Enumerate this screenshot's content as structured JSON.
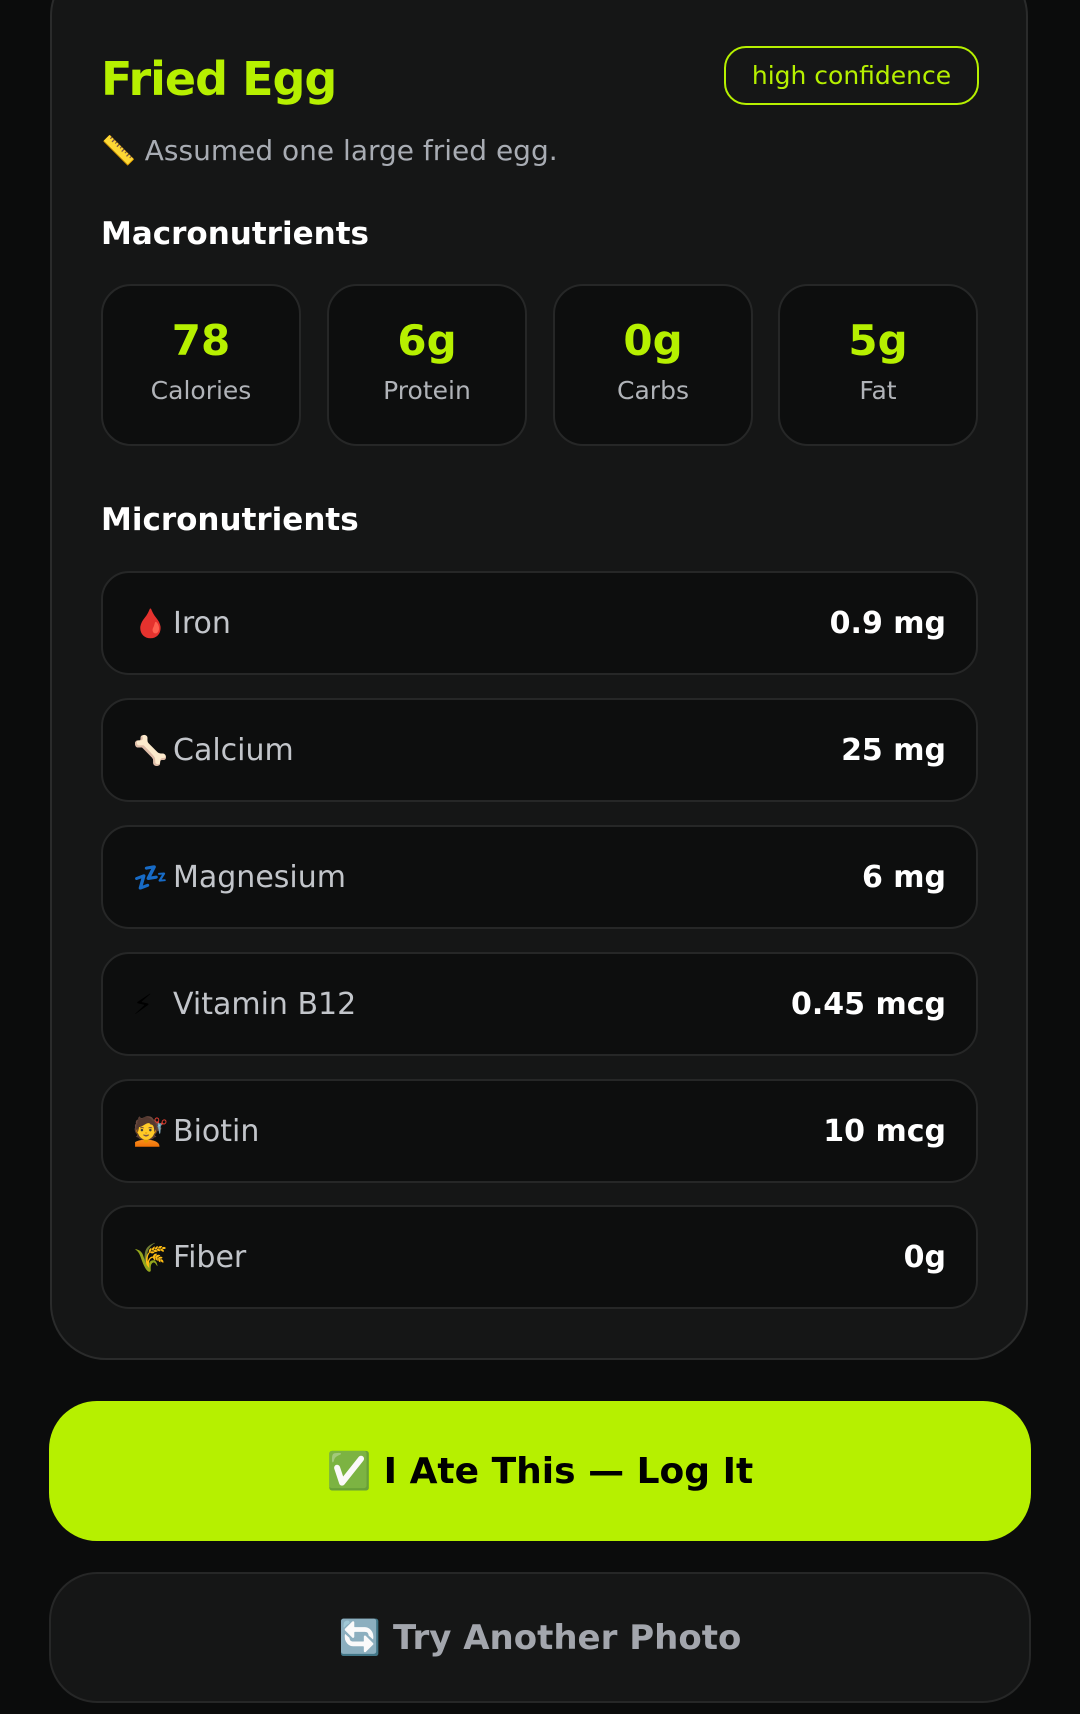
{
  "food": {
    "title": "Fried Egg",
    "confidence": "high confidence",
    "note_icon": "📏",
    "note": "Assumed one large fried egg."
  },
  "macros": {
    "heading": "Macronutrients",
    "items": [
      {
        "value": "78",
        "label": "Calories"
      },
      {
        "value": "6g",
        "label": "Protein"
      },
      {
        "value": "0g",
        "label": "Carbs"
      },
      {
        "value": "5g",
        "label": "Fat"
      }
    ]
  },
  "micros": {
    "heading": "Micronutrients",
    "items": [
      {
        "icon": "🩸",
        "name": "Iron",
        "value": "0.9 mg"
      },
      {
        "icon": "🦴",
        "name": "Calcium",
        "value": "25 mg"
      },
      {
        "icon": "💤",
        "name": "Magnesium",
        "value": "6 mg"
      },
      {
        "icon": "⚡",
        "name": "Vitamin B12",
        "value": "0.45 mcg"
      },
      {
        "icon": "💇",
        "name": "Biotin",
        "value": "10 mcg"
      },
      {
        "icon": "🌾",
        "name": "Fiber",
        "value": "0g"
      }
    ]
  },
  "actions": {
    "log_icon": "✅",
    "log_label": "I Ate This — Log It",
    "retry_icon": "🔄",
    "retry_label": "Try Another Photo"
  },
  "colors": {
    "accent": "#b6f000",
    "background": "#0b0c0c",
    "card": "#151616"
  }
}
